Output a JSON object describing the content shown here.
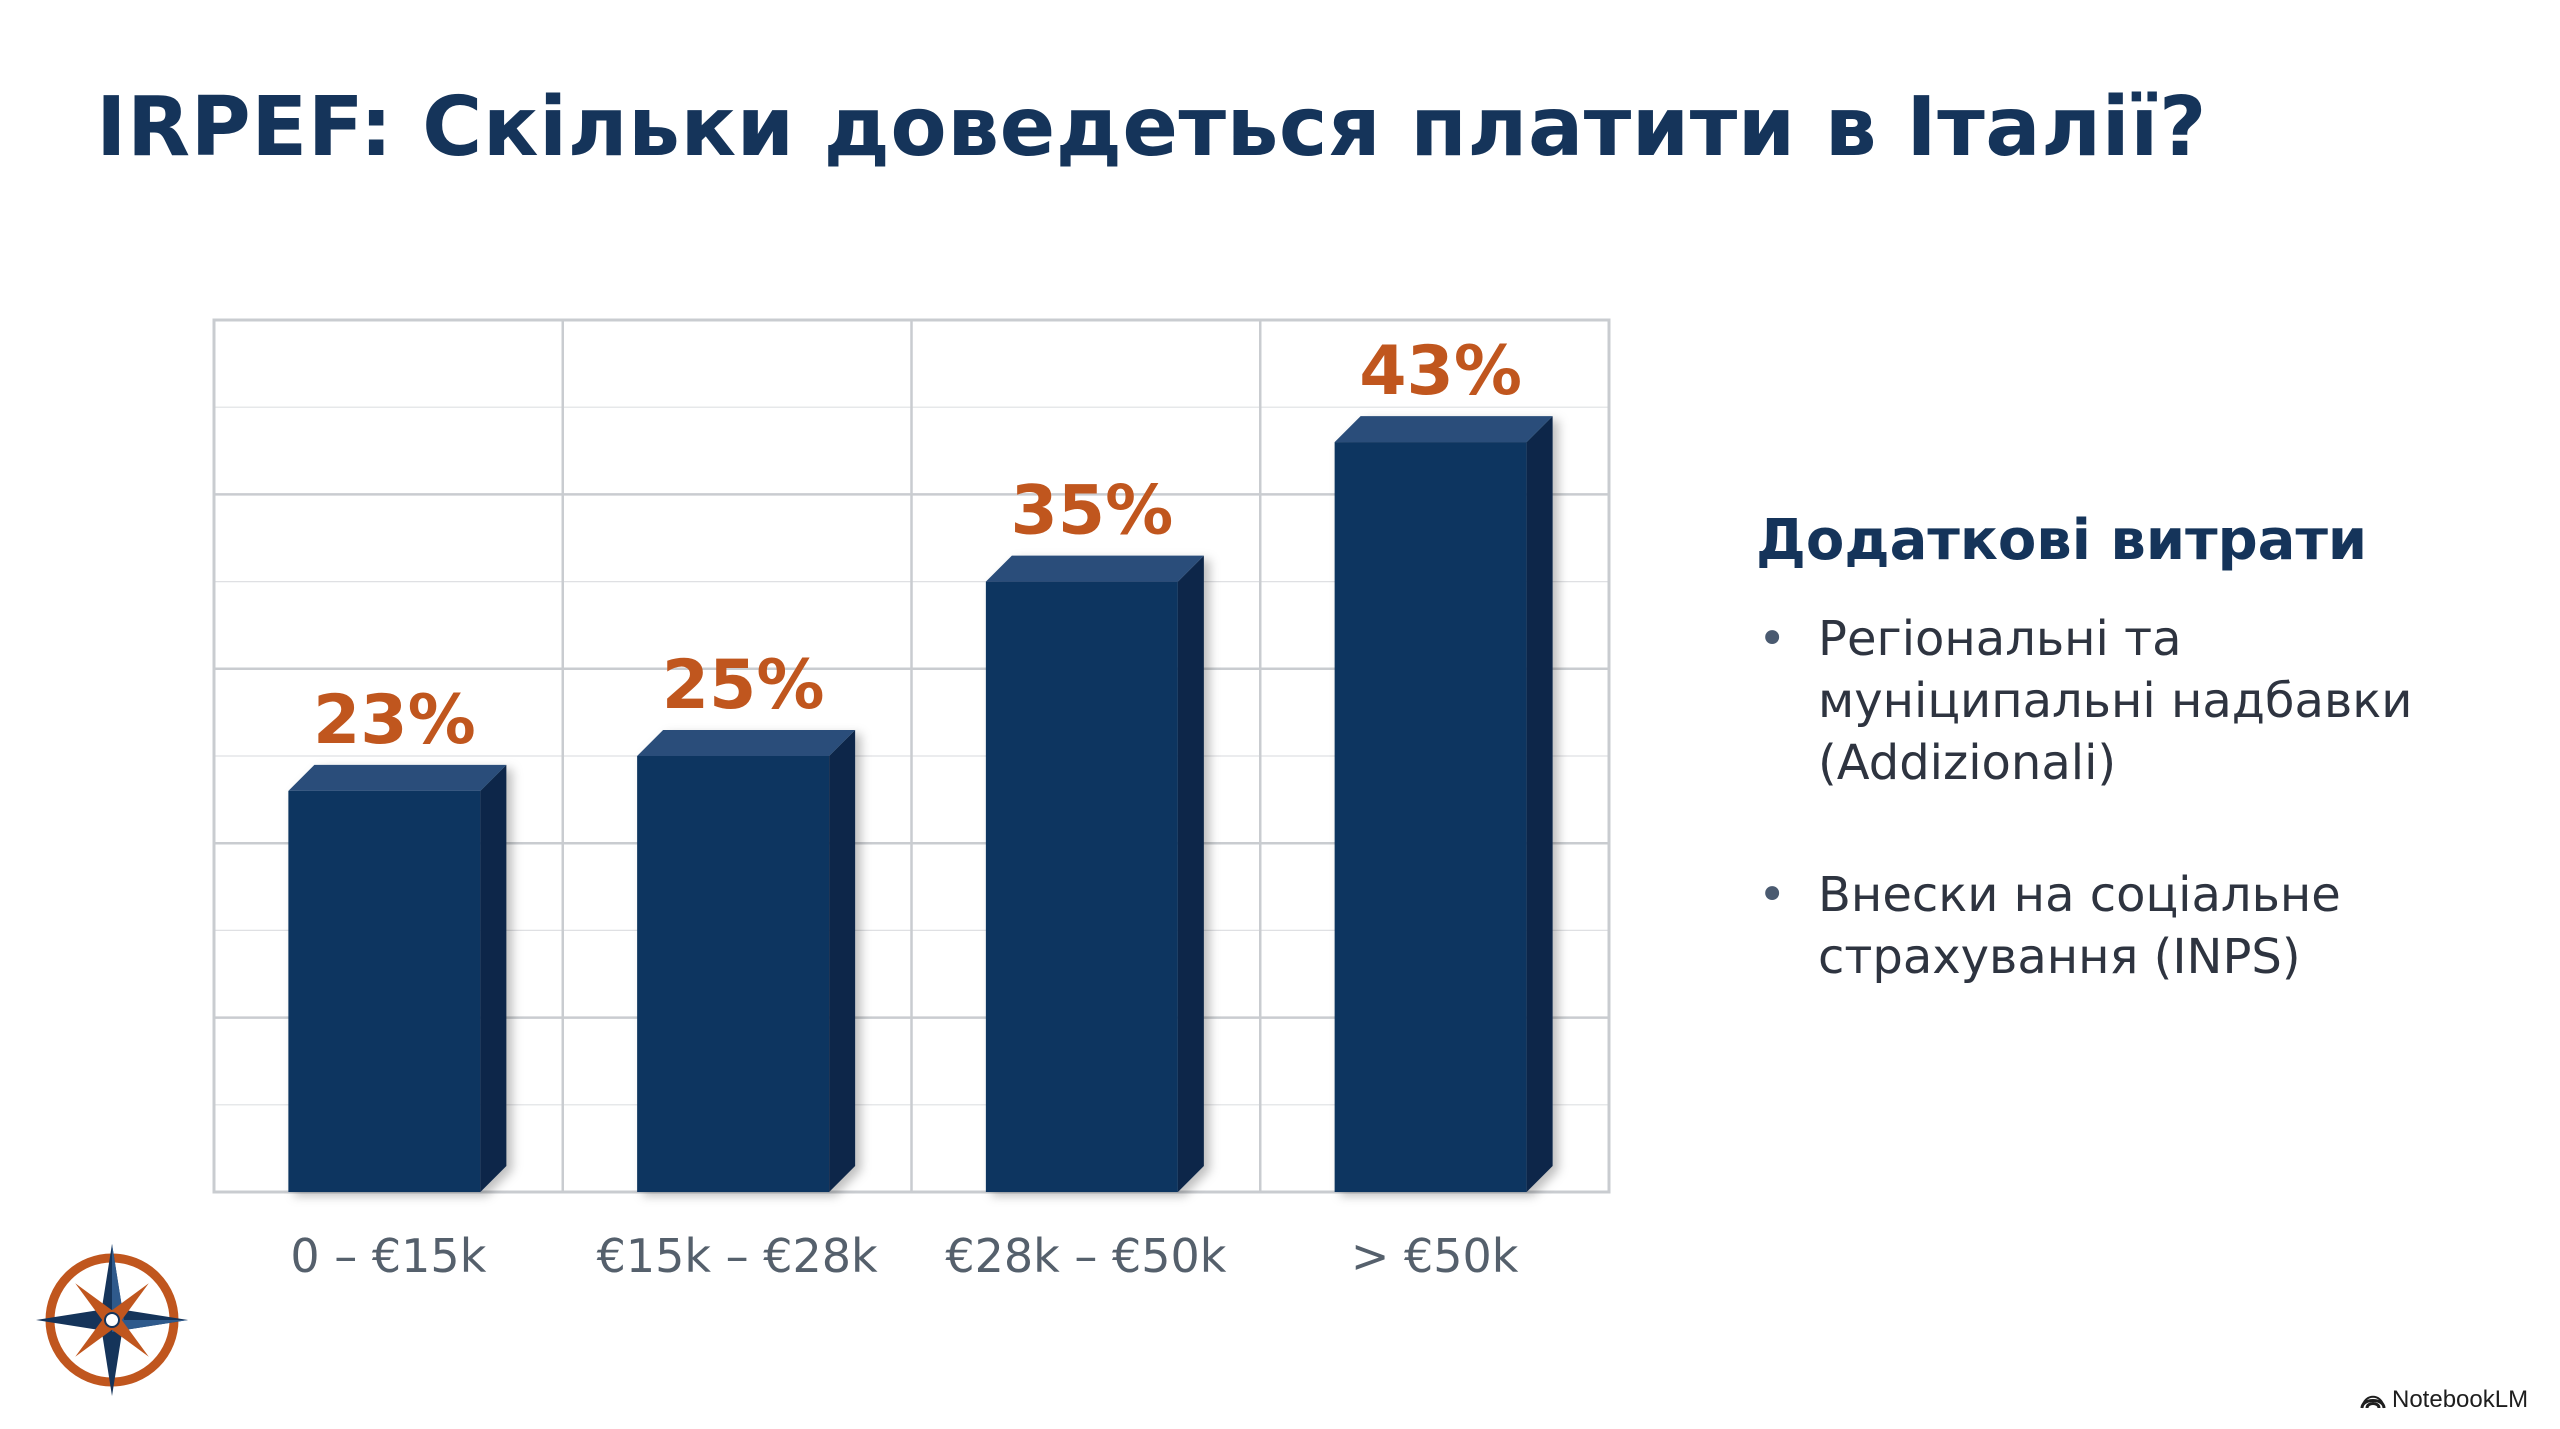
{
  "title": "IRPEF: Скільки доведеться платити в Італії?",
  "chart_data": {
    "type": "bar",
    "categories": [
      "0 – €15k",
      "€15k – €28k",
      "€28k – €50k",
      "> €50k"
    ],
    "values": [
      23,
      25,
      35,
      43
    ],
    "data_labels": [
      "23%",
      "25%",
      "35%",
      "43%"
    ],
    "title": "",
    "xlabel": "",
    "ylabel": "",
    "ylim": [
      0,
      50
    ],
    "grid": true,
    "legend": "none",
    "bar_color": "#0e3560",
    "label_color": "#c0561e"
  },
  "sidebar": {
    "heading": "Додаткові витрати",
    "bullet_glyph": "•",
    "items": [
      "Регіональні та муніципальні надбавки (Addizionali)",
      "Внески на соціальне страхування (INPS)"
    ]
  },
  "watermark": {
    "text": "NotebookLM",
    "icon": "notebooklm-icon"
  },
  "logo": {
    "icon": "compass-rose-icon"
  },
  "colors": {
    "title": "#15345a",
    "bar": "#0e3560",
    "label": "#c0561e",
    "grid": "#c9ccd0"
  }
}
